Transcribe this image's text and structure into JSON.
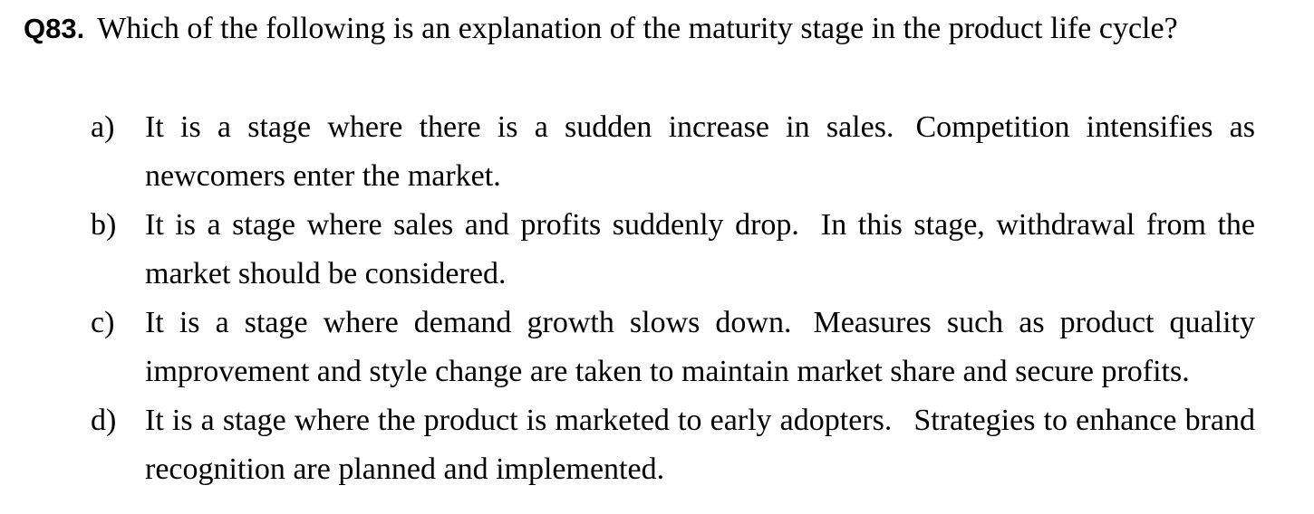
{
  "question": {
    "number": "Q83.",
    "text": "Which of the following is an explanation of the maturity stage in the product life cycle?"
  },
  "options": [
    {
      "letter": "a)",
      "sentence1": "It is a stage where there is a sudden increase in sales.",
      "sentence2": "Competition intensifies as newcomers enter the market."
    },
    {
      "letter": "b)",
      "sentence1": "It is a stage where sales and profits suddenly drop.",
      "sentence2": "In this stage, withdrawal from the market should be considered."
    },
    {
      "letter": "c)",
      "sentence1": "It is a stage where demand growth slows down.",
      "sentence2": "Measures such as product quality improvement and style change are taken to maintain market share and secure profits."
    },
    {
      "letter": "d)",
      "sentence1": "It is a stage where the product is marketed to early adopters.",
      "sentence2": "Strategies to enhance brand recognition are planned and implemented."
    }
  ]
}
